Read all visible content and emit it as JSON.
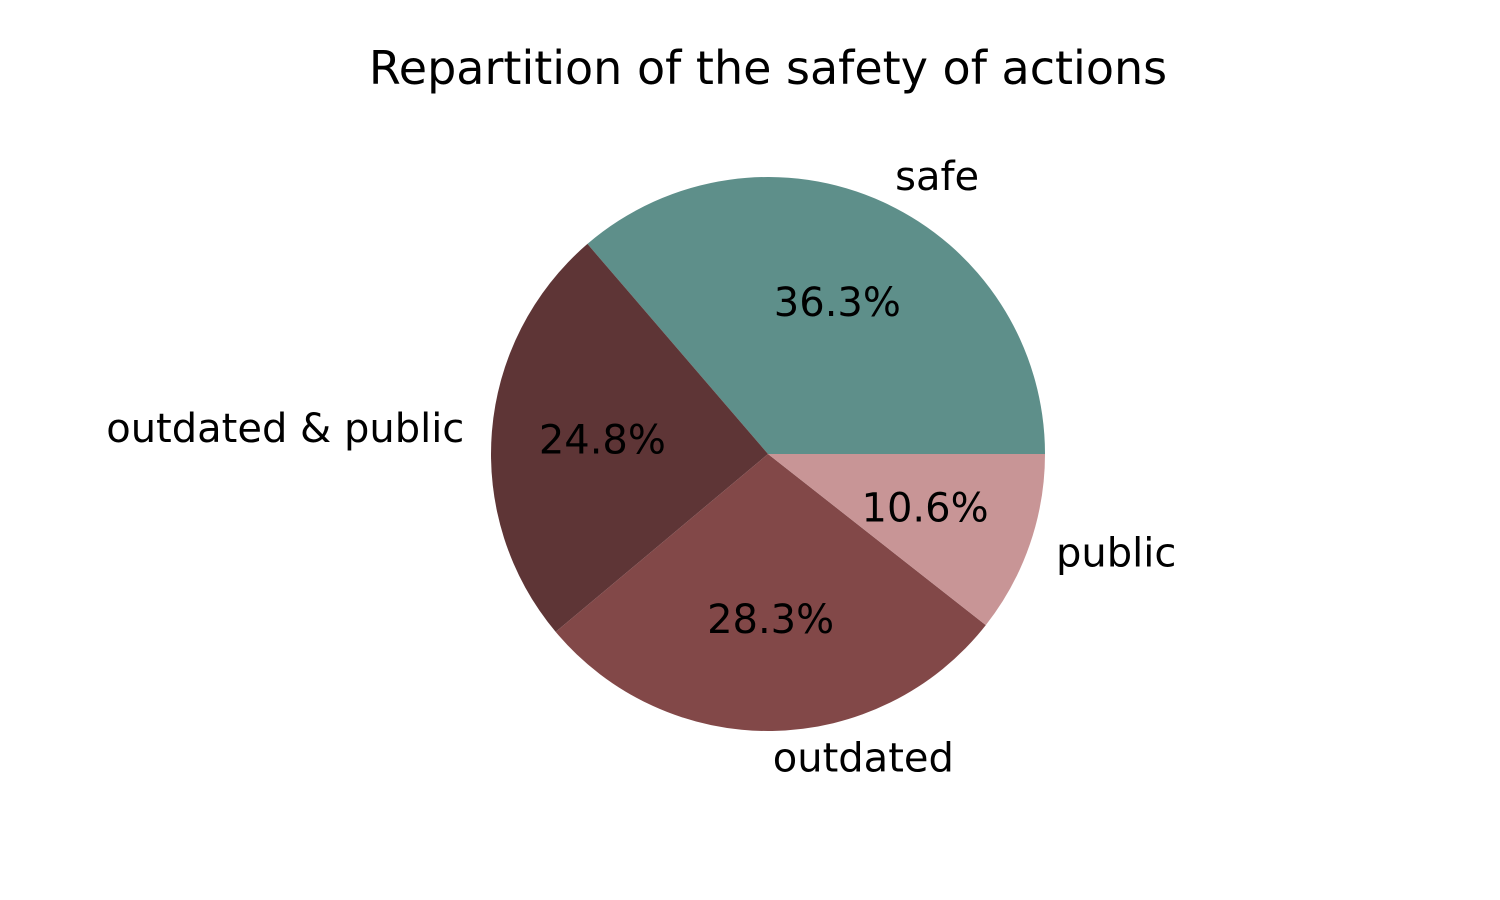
{
  "chart_data": {
    "type": "pie",
    "title": "Repartition of the safety of actions",
    "start_angle_deg": 0,
    "direction": "counterclockwise",
    "slices": [
      {
        "label": "safe",
        "value": 36.3,
        "pct_label": "36.3%",
        "color": "#5e8f8a"
      },
      {
        "label": "outdated & public",
        "value": 24.8,
        "pct_label": "24.8%",
        "color": "#5e3536"
      },
      {
        "label": "outdated",
        "value": 28.3,
        "pct_label": "28.3%",
        "color": "#824848"
      },
      {
        "label": "public",
        "value": 10.6,
        "pct_label": "10.6%",
        "color": "#c89596"
      }
    ]
  }
}
